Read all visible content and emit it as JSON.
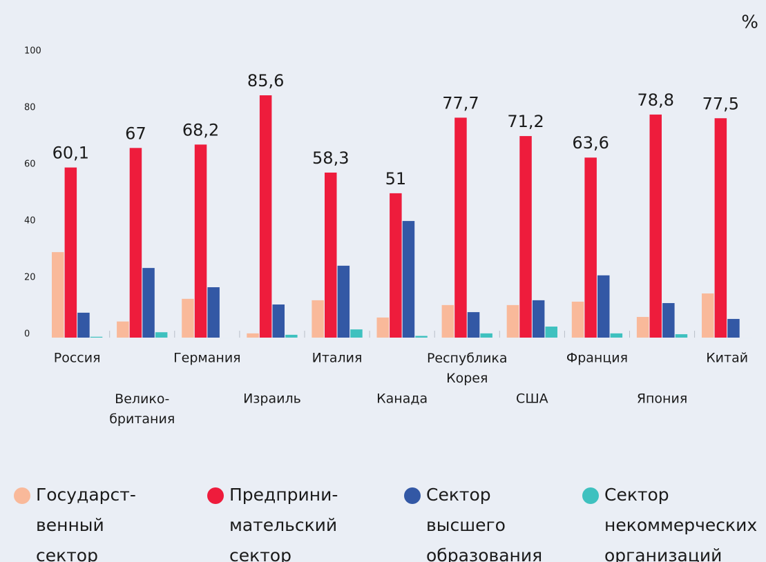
{
  "chart_data": {
    "type": "bar",
    "unit": "%",
    "categories": [
      "Россия",
      "Велико-\nбритания",
      "Германия",
      "Израиль",
      "Италия",
      "Канада",
      "Республика\nКорея",
      "США",
      "Франция",
      "Япония",
      "Китай"
    ],
    "series": [
      {
        "name": "Государст-\nвенный\nсектор",
        "color": "#f9b99a",
        "values": [
          30.2,
          5.7,
          13.7,
          1.5,
          13.2,
          7.1,
          11.5,
          11.5,
          12.7,
          7.3,
          15.6
        ]
      },
      {
        "name": "Предприни-\nмательский\nсектор",
        "color": "#ee1c3c",
        "values": [
          60.1,
          67,
          68.2,
          85.6,
          58.3,
          51,
          77.7,
          71.2,
          63.6,
          78.8,
          77.5
        ],
        "value_labels": [
          "60,1",
          "67",
          "68,2",
          "85,6",
          "58,3",
          "51",
          "77,7",
          "71,2",
          "63,6",
          "78,8",
          "77,5"
        ]
      },
      {
        "name": "Сектор\nвысшего\nобразования",
        "color": "#3358a5",
        "values": [
          8.8,
          24.6,
          17.8,
          11.7,
          25.4,
          41.2,
          9.0,
          13.2,
          22.0,
          12.2,
          6.6
        ]
      },
      {
        "name": "Сектор\nнекоммерческих\nорганизаций",
        "color": "#3fc1bf",
        "values": [
          0.3,
          1.9,
          0,
          1.0,
          2.9,
          0.6,
          1.5,
          3.9,
          1.5,
          1.2,
          0
        ]
      }
    ],
    "ylim": [
      0,
      100
    ],
    "yticks": [
      0,
      20,
      40,
      60,
      80,
      100
    ],
    "grid": false,
    "legend": "bottom"
  }
}
